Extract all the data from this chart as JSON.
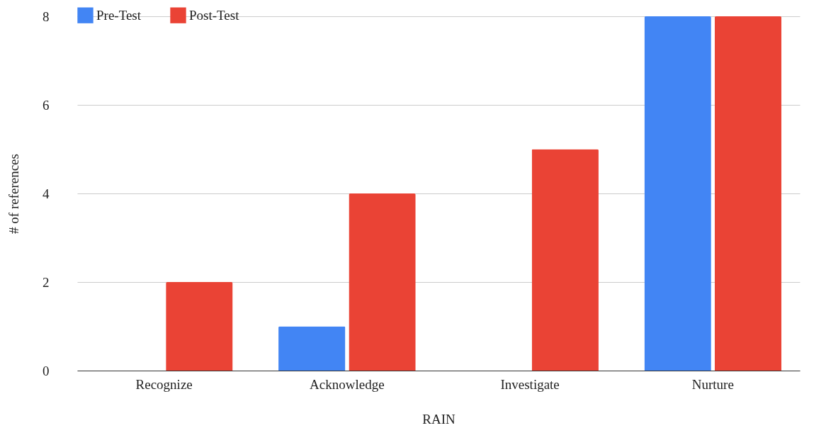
{
  "chart_data": {
    "type": "bar",
    "xlabel": "RAIN",
    "ylabel": "# of references",
    "categories": [
      "Recognize",
      "Acknowledge",
      "Investigate",
      "Nurture"
    ],
    "series": [
      {
        "name": "Pre-Test",
        "color": "#4285f4",
        "values": [
          0,
          1,
          0,
          8
        ]
      },
      {
        "name": "Post-Test",
        "color": "#ea4335",
        "values": [
          2,
          4,
          5,
          8
        ]
      }
    ],
    "ylim": [
      0,
      8
    ],
    "yticks": [
      0,
      2,
      4,
      6,
      8
    ],
    "grid": "y",
    "legend": "top"
  }
}
